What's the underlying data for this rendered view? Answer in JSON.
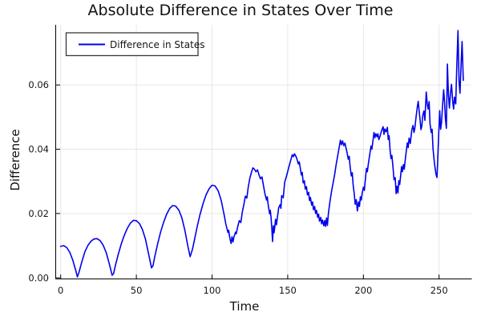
{
  "figure": {
    "title": "Absolute Difference in States Over Time"
  },
  "colors": {
    "line": "#0000ee",
    "axis": "#000000",
    "grid": "#e4e4e4",
    "text": "#111111",
    "legend_border": "#383838",
    "background": "#ffffff"
  },
  "chart_data": {
    "type": "line",
    "title": "Absolute Difference in States Over Time",
    "xlabel": "Time",
    "ylabel": "Difference",
    "xlim": [
      -3.3,
      271.6
    ],
    "ylim": [
      -0.00035,
      0.0787
    ],
    "grid": true,
    "x_ticks": {
      "values": [
        0,
        50,
        100,
        150,
        200,
        250
      ],
      "labels": [
        "0",
        "50",
        "100",
        "150",
        "200",
        "250"
      ]
    },
    "y_ticks": {
      "values": [
        0.0,
        0.02,
        0.04,
        0.06
      ],
      "labels": [
        "0.00",
        "0.02",
        "0.04",
        "0.06"
      ]
    },
    "legend": {
      "position": "top-left",
      "entries": [
        {
          "label": "Difference in States",
          "color": "#0000ee"
        }
      ]
    },
    "series": [
      {
        "name": "Difference in States",
        "color": "#0000ee",
        "points": [
          [
            0,
            0.0098
          ],
          [
            2,
            0.01
          ],
          [
            4,
            0.0094
          ],
          [
            6,
            0.0079
          ],
          [
            8,
            0.0055
          ],
          [
            10,
            0.0022
          ],
          [
            11,
            0.0003
          ],
          [
            12,
            0.0016
          ],
          [
            14,
            0.0051
          ],
          [
            16,
            0.0081
          ],
          [
            18,
            0.0101
          ],
          [
            20,
            0.0114
          ],
          [
            22,
            0.0121
          ],
          [
            24,
            0.0122
          ],
          [
            26,
            0.0116
          ],
          [
            28,
            0.0102
          ],
          [
            30,
            0.0079
          ],
          [
            32,
            0.0046
          ],
          [
            34,
            0.0008
          ],
          [
            35,
            0.0014
          ],
          [
            36,
            0.0036
          ],
          [
            38,
            0.0073
          ],
          [
            40,
            0.0105
          ],
          [
            42,
            0.0132
          ],
          [
            44,
            0.0154
          ],
          [
            46,
            0.017
          ],
          [
            48,
            0.0179
          ],
          [
            50,
            0.0178
          ],
          [
            52,
            0.0169
          ],
          [
            54,
            0.015
          ],
          [
            56,
            0.012
          ],
          [
            58,
            0.0076
          ],
          [
            60,
            0.0031
          ],
          [
            61,
            0.0038
          ],
          [
            62,
            0.0063
          ],
          [
            64,
            0.0105
          ],
          [
            66,
            0.0142
          ],
          [
            68,
            0.0173
          ],
          [
            70,
            0.0198
          ],
          [
            72,
            0.0216
          ],
          [
            74,
            0.0225
          ],
          [
            76,
            0.0223
          ],
          [
            78,
            0.0211
          ],
          [
            80,
            0.0187
          ],
          [
            82,
            0.0149
          ],
          [
            84,
            0.0099
          ],
          [
            85.5,
            0.0066
          ],
          [
            87,
            0.0088
          ],
          [
            88,
            0.011
          ],
          [
            90,
            0.0155
          ],
          [
            92,
            0.0196
          ],
          [
            94,
            0.023
          ],
          [
            96,
            0.0258
          ],
          [
            98,
            0.0277
          ],
          [
            100,
            0.0288
          ],
          [
            102,
            0.0286
          ],
          [
            104,
            0.0271
          ],
          [
            106,
            0.0241
          ],
          [
            108,
            0.0196
          ],
          [
            109,
            0.017
          ],
          [
            110,
            0.015
          ],
          [
            110.5,
            0.0141
          ],
          [
            111,
            0.0148
          ],
          [
            111.5,
            0.0131
          ],
          [
            112,
            0.0118
          ],
          [
            112.6,
            0.0107
          ],
          [
            113.2,
            0.0128
          ],
          [
            113.8,
            0.0112
          ],
          [
            114.5,
            0.0128
          ],
          [
            115.5,
            0.0142
          ],
          [
            116,
            0.0137
          ],
          [
            117,
            0.016
          ],
          [
            118,
            0.0178
          ],
          [
            119,
            0.0172
          ],
          [
            120,
            0.0205
          ],
          [
            121,
            0.0228
          ],
          [
            122,
            0.0254
          ],
          [
            123,
            0.0248
          ],
          [
            124,
            0.0285
          ],
          [
            125,
            0.031
          ],
          [
            126,
            0.0328
          ],
          [
            127,
            0.0342
          ],
          [
            128,
            0.0338
          ],
          [
            129,
            0.033
          ],
          [
            130,
            0.0336
          ],
          [
            131,
            0.032
          ],
          [
            132,
            0.0308
          ],
          [
            133,
            0.0314
          ],
          [
            134,
            0.0286
          ],
          [
            135,
            0.026
          ],
          [
            136,
            0.0242
          ],
          [
            136.5,
            0.0252
          ],
          [
            137,
            0.023
          ],
          [
            138,
            0.0199
          ],
          [
            138.5,
            0.021
          ],
          [
            139,
            0.0185
          ],
          [
            139.5,
            0.0152
          ],
          [
            140,
            0.0113
          ],
          [
            140.5,
            0.0162
          ],
          [
            141,
            0.014
          ],
          [
            142,
            0.0182
          ],
          [
            142.5,
            0.0165
          ],
          [
            143.5,
            0.02
          ],
          [
            144,
            0.0218
          ],
          [
            145,
            0.0228
          ],
          [
            145.5,
            0.0216
          ],
          [
            146,
            0.0256
          ],
          [
            147,
            0.0249
          ],
          [
            148,
            0.0297
          ],
          [
            149,
            0.0313
          ],
          [
            150,
            0.0331
          ],
          [
            151,
            0.0349
          ],
          [
            152,
            0.0366
          ],
          [
            153,
            0.0383
          ],
          [
            153.8,
            0.0377
          ],
          [
            154.5,
            0.0386
          ],
          [
            155.5,
            0.0377
          ],
          [
            156.2,
            0.0368
          ],
          [
            157,
            0.0354
          ],
          [
            157.6,
            0.0361
          ],
          [
            158.2,
            0.0344
          ],
          [
            159,
            0.032
          ],
          [
            159.6,
            0.0328
          ],
          [
            160.2,
            0.0295
          ],
          [
            161,
            0.0302
          ],
          [
            161.6,
            0.0276
          ],
          [
            162.4,
            0.0284
          ],
          [
            163,
            0.0258
          ],
          [
            163.8,
            0.0266
          ],
          [
            164.4,
            0.024
          ],
          [
            165,
            0.025
          ],
          [
            165.8,
            0.0226
          ],
          [
            166.4,
            0.0236
          ],
          [
            167,
            0.0212
          ],
          [
            167.8,
            0.0222
          ],
          [
            168.4,
            0.02
          ],
          [
            169,
            0.021
          ],
          [
            169.8,
            0.0188
          ],
          [
            170.4,
            0.0198
          ],
          [
            171,
            0.0176
          ],
          [
            171.8,
            0.0188
          ],
          [
            172.4,
            0.0168
          ],
          [
            173,
            0.018
          ],
          [
            173.8,
            0.0162
          ],
          [
            174.4,
            0.0178
          ],
          [
            175,
            0.016
          ],
          [
            175.6,
            0.0186
          ],
          [
            176.2,
            0.0163
          ],
          [
            176.8,
            0.0196
          ],
          [
            177.5,
            0.0223
          ],
          [
            178.2,
            0.0247
          ],
          [
            179,
            0.0271
          ],
          [
            180,
            0.0296
          ],
          [
            181,
            0.0322
          ],
          [
            182,
            0.0352
          ],
          [
            183,
            0.0379
          ],
          [
            184,
            0.0406
          ],
          [
            184.8,
            0.0428
          ],
          [
            185.5,
            0.0414
          ],
          [
            186.2,
            0.0426
          ],
          [
            187,
            0.0411
          ],
          [
            187.8,
            0.0419
          ],
          [
            188.5,
            0.0404
          ],
          [
            189.2,
            0.039
          ],
          [
            190,
            0.0369
          ],
          [
            190.6,
            0.0378
          ],
          [
            191.2,
            0.0347
          ],
          [
            192,
            0.0317
          ],
          [
            192.6,
            0.0327
          ],
          [
            193.2,
            0.0289
          ],
          [
            194,
            0.0259
          ],
          [
            194.6,
            0.0229
          ],
          [
            195.3,
            0.0243
          ],
          [
            196,
            0.0208
          ],
          [
            196.7,
            0.0236
          ],
          [
            197.4,
            0.0222
          ],
          [
            198,
            0.0252
          ],
          [
            198.6,
            0.0242
          ],
          [
            199.2,
            0.0263
          ],
          [
            200,
            0.0282
          ],
          [
            200.6,
            0.0272
          ],
          [
            201.2,
            0.0302
          ],
          [
            202,
            0.034
          ],
          [
            202.6,
            0.033
          ],
          [
            203.2,
            0.0353
          ],
          [
            204,
            0.0378
          ],
          [
            205,
            0.041
          ],
          [
            205.6,
            0.04
          ],
          [
            206.2,
            0.0422
          ],
          [
            207,
            0.0452
          ],
          [
            207.6,
            0.0436
          ],
          [
            208.2,
            0.0448
          ],
          [
            209,
            0.0439
          ],
          [
            209.6,
            0.0448
          ],
          [
            210.2,
            0.043
          ],
          [
            211,
            0.0441
          ],
          [
            212,
            0.0458
          ],
          [
            213,
            0.047
          ],
          [
            213.6,
            0.0446
          ],
          [
            214.2,
            0.0463
          ],
          [
            215,
            0.0454
          ],
          [
            215.8,
            0.0468
          ],
          [
            216.4,
            0.043
          ],
          [
            217,
            0.0442
          ],
          [
            217.6,
            0.0397
          ],
          [
            218.2,
            0.0371
          ],
          [
            218.8,
            0.0381
          ],
          [
            219.6,
            0.0342
          ],
          [
            220.2,
            0.0305
          ],
          [
            221,
            0.0312
          ],
          [
            221.6,
            0.0262
          ],
          [
            222.2,
            0.0285
          ],
          [
            222.8,
            0.0264
          ],
          [
            223.4,
            0.0302
          ],
          [
            224,
            0.029
          ],
          [
            224.6,
            0.0318
          ],
          [
            225.2,
            0.0346
          ],
          [
            225.8,
            0.033
          ],
          [
            226.4,
            0.0352
          ],
          [
            227,
            0.0338
          ],
          [
            227.6,
            0.0365
          ],
          [
            228.4,
            0.0396
          ],
          [
            229,
            0.042
          ],
          [
            229.6,
            0.0405
          ],
          [
            230.2,
            0.0435
          ],
          [
            231,
            0.0418
          ],
          [
            232,
            0.046
          ],
          [
            232.8,
            0.0474
          ],
          [
            233.4,
            0.0452
          ],
          [
            234,
            0.0466
          ],
          [
            234.8,
            0.05
          ],
          [
            235.6,
            0.053
          ],
          [
            236.2,
            0.0549
          ],
          [
            236.8,
            0.052
          ],
          [
            237.4,
            0.0495
          ],
          [
            238,
            0.0461
          ],
          [
            238.6,
            0.0472
          ],
          [
            239.2,
            0.0504
          ],
          [
            240,
            0.0519
          ],
          [
            240.6,
            0.049
          ],
          [
            241.5,
            0.0578
          ],
          [
            242.2,
            0.054
          ],
          [
            242.8,
            0.0525
          ],
          [
            243.4,
            0.0548
          ],
          [
            244,
            0.048
          ],
          [
            244.8,
            0.0452
          ],
          [
            245.4,
            0.0462
          ],
          [
            246,
            0.04
          ],
          [
            246.8,
            0.0362
          ],
          [
            247.4,
            0.034
          ],
          [
            248,
            0.0322
          ],
          [
            248.6,
            0.0312
          ],
          [
            249.2,
            0.038
          ],
          [
            249.8,
            0.0452
          ],
          [
            250.4,
            0.052
          ],
          [
            251,
            0.0462
          ],
          [
            251.6,
            0.0481
          ],
          [
            252.2,
            0.053
          ],
          [
            253,
            0.0585
          ],
          [
            253.6,
            0.0549
          ],
          [
            254.2,
            0.0495
          ],
          [
            254.8,
            0.0465
          ],
          [
            255.5,
            0.0665
          ],
          [
            256.2,
            0.0568
          ],
          [
            256.8,
            0.0528
          ],
          [
            257.5,
            0.0575
          ],
          [
            258.2,
            0.0602
          ],
          [
            259,
            0.0549
          ],
          [
            259.6,
            0.0525
          ],
          [
            260.2,
            0.0562
          ],
          [
            261,
            0.0541
          ],
          [
            261.6,
            0.0642
          ],
          [
            262.5,
            0.0769
          ],
          [
            263.2,
            0.0611
          ],
          [
            263.8,
            0.0574
          ],
          [
            264.5,
            0.066
          ],
          [
            265.2,
            0.0735
          ],
          [
            266,
            0.0614
          ]
        ]
      }
    ]
  }
}
